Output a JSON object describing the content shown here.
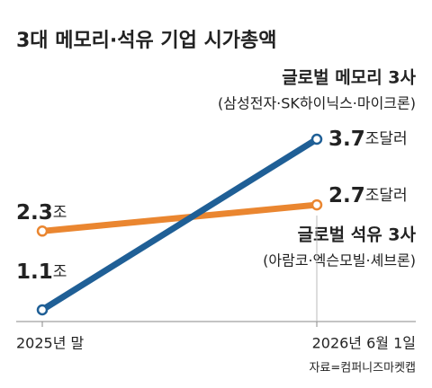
{
  "chart_data": {
    "type": "line",
    "title": "3대 메모리·석유 기업 시가총액",
    "categories": [
      "2025년 말",
      "2026년 6월 1일"
    ],
    "series": [
      {
        "name": "글로벌 메모리 3사",
        "note": "(삼성전자·SK하이닉스·마이크론)",
        "color": "#1f5f96",
        "values": [
          1.1,
          3.7
        ],
        "value_labels": [
          "1.1조",
          "3.7조달러"
        ]
      },
      {
        "name": "글로벌 석유 3사",
        "note": "(아람코·엑슨모빌·셰브론)",
        "color": "#ea8630",
        "values": [
          2.3,
          2.7
        ],
        "value_labels": [
          "2.3조",
          "2.7조달러"
        ]
      }
    ],
    "source": "자료=컴퍼니즈마켓캡"
  }
}
